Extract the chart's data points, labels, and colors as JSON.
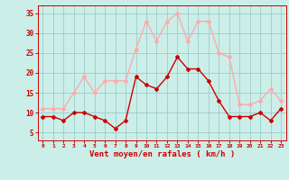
{
  "hours": [
    0,
    1,
    2,
    3,
    4,
    5,
    6,
    7,
    8,
    9,
    10,
    11,
    12,
    13,
    14,
    15,
    16,
    17,
    18,
    19,
    20,
    21,
    22,
    23
  ],
  "wind_avg": [
    9,
    9,
    8,
    10,
    10,
    9,
    8,
    6,
    8,
    19,
    17,
    16,
    19,
    24,
    21,
    21,
    18,
    13,
    9,
    9,
    9,
    10,
    8,
    11
  ],
  "wind_gust": [
    11,
    11,
    11,
    15,
    19,
    15,
    18,
    18,
    18,
    26,
    33,
    28,
    33,
    35,
    28,
    33,
    33,
    25,
    24,
    12,
    12,
    13,
    16,
    13
  ],
  "line_color_avg": "#cc0000",
  "line_color_gust": "#ffaaaa",
  "bg_color": "#cceee8",
  "grid_color": "#99cccc",
  "text_color": "#cc0000",
  "xlabel": "Vent moyen/en rafales ( km/h )",
  "ylim": [
    3,
    37
  ],
  "yticks": [
    5,
    10,
    15,
    20,
    25,
    30,
    35
  ],
  "marker": "D",
  "marker_size": 2,
  "line_width": 1.0
}
